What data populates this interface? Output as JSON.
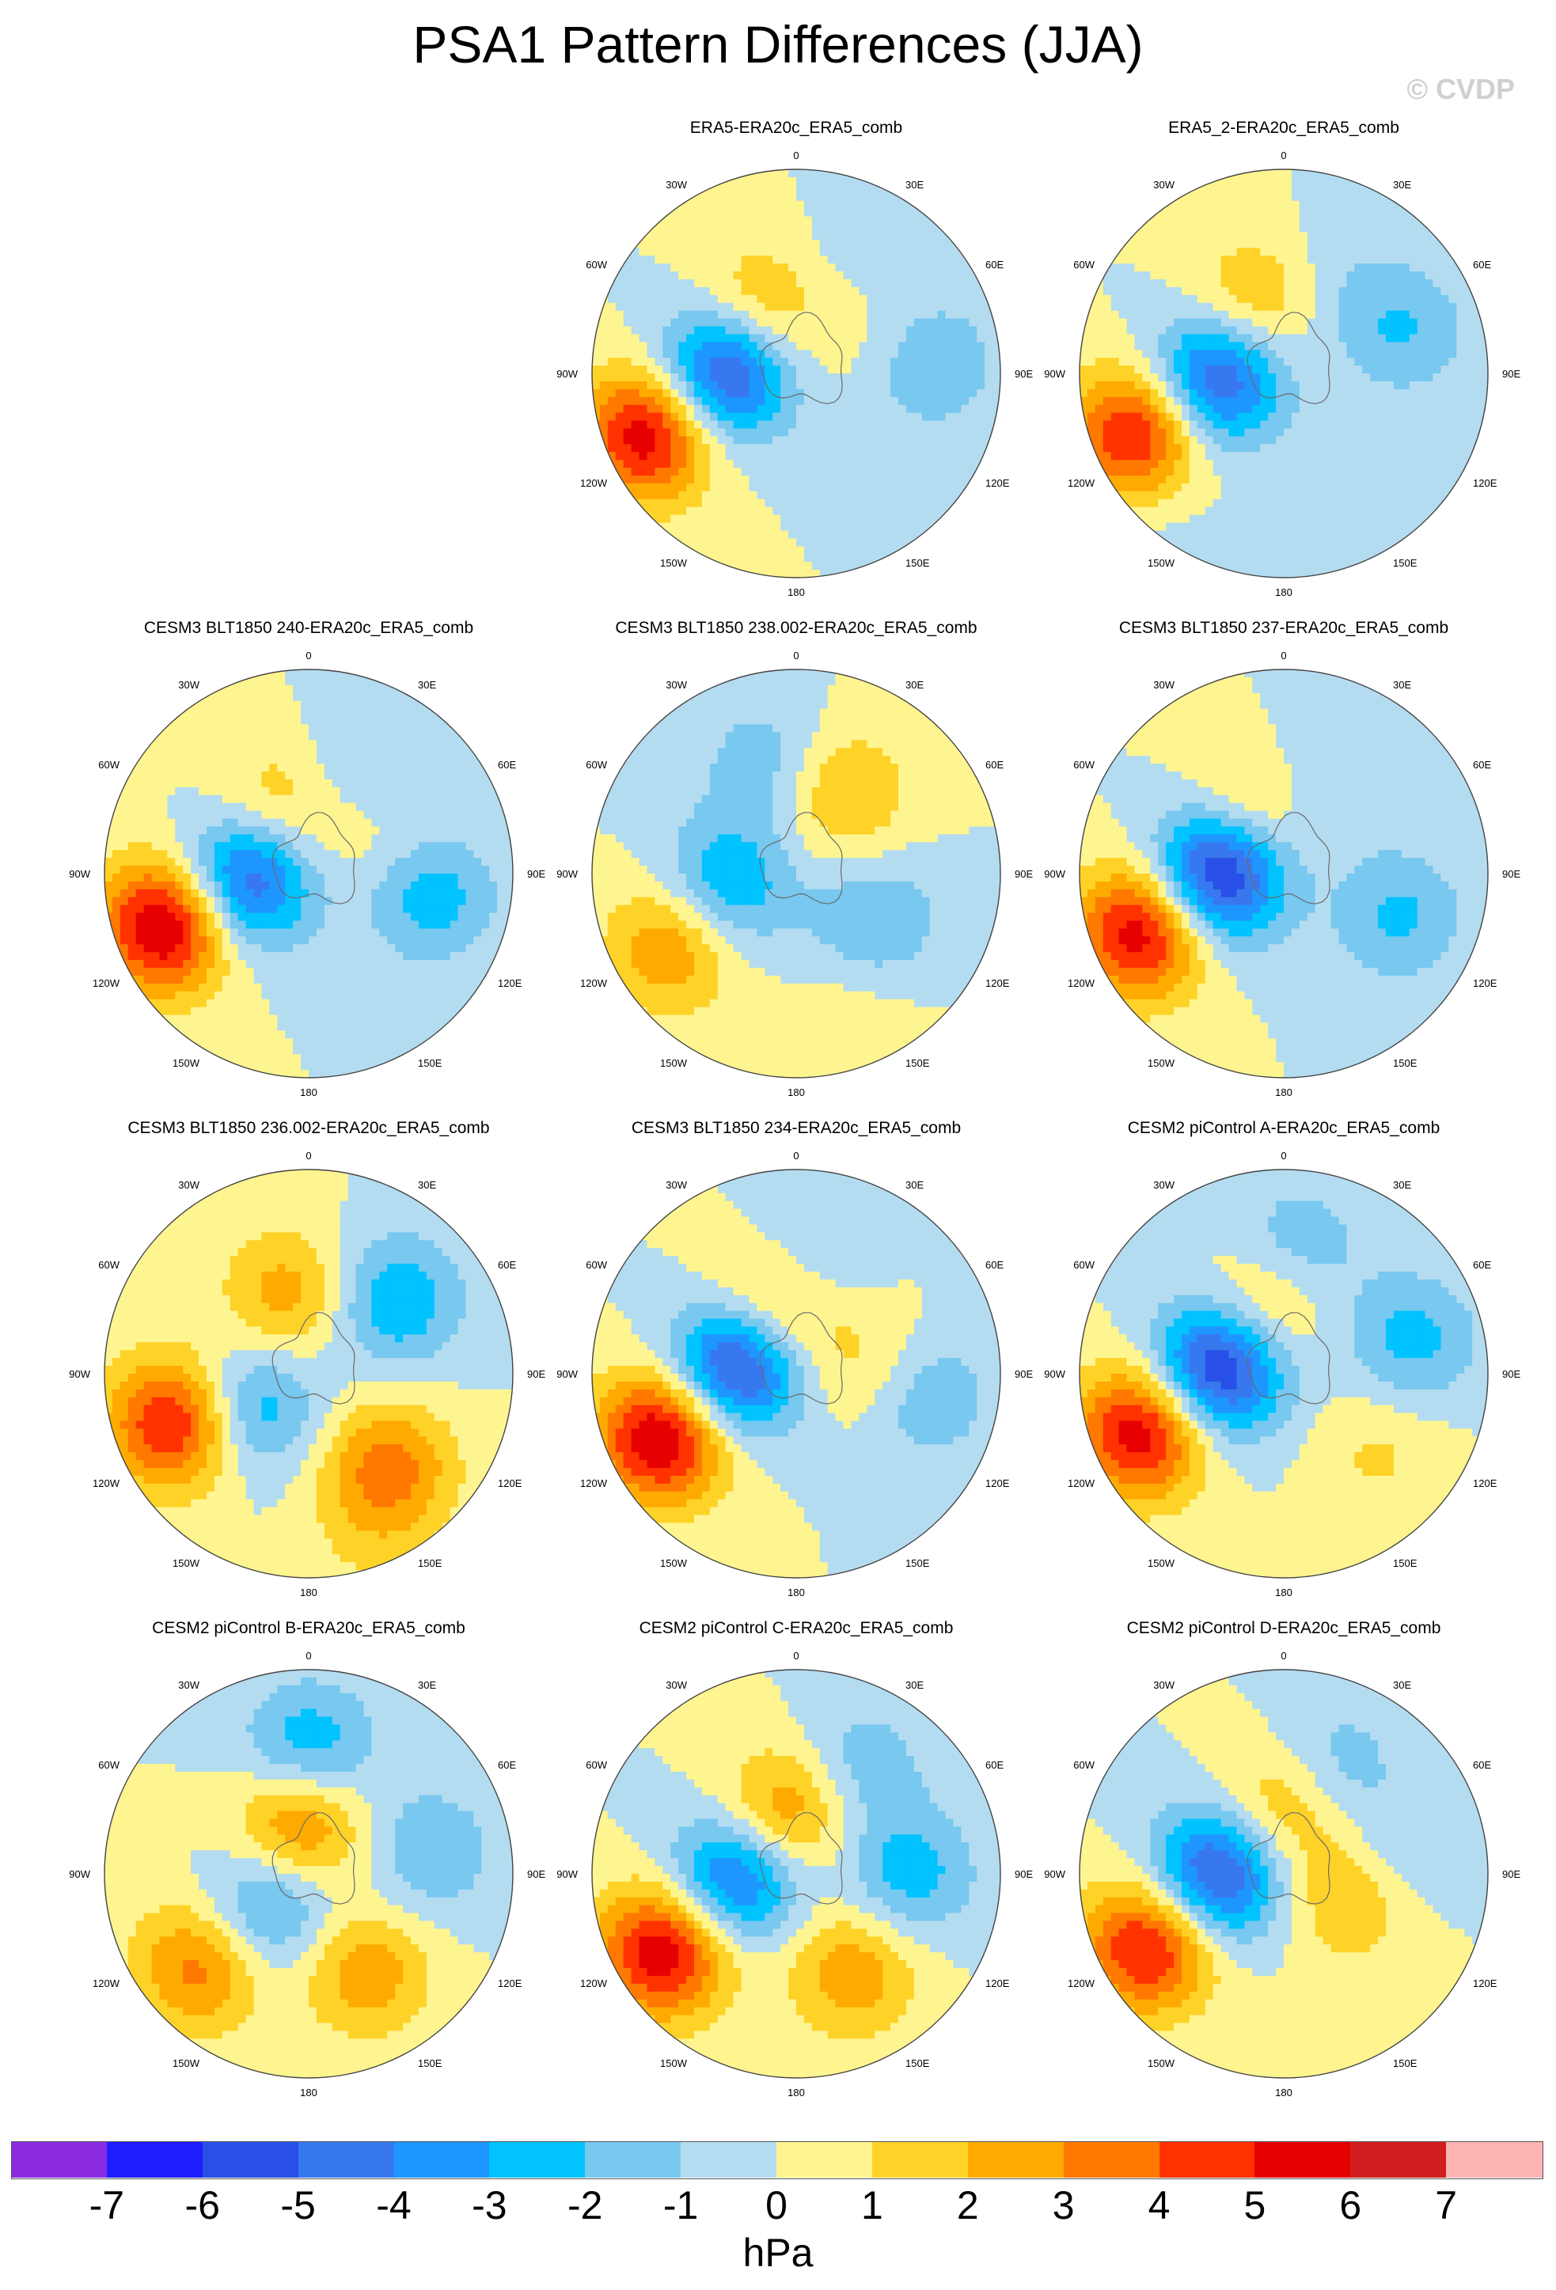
{
  "title": "PSA1 Pattern Differences (JJA)",
  "watermark": "© CVDP",
  "units": "hPa",
  "longitude_labels": [
    "0",
    "30E",
    "60E",
    "90E",
    "120E",
    "150E",
    "180",
    "150W",
    "120W",
    "90W",
    "60W",
    "30W"
  ],
  "colors": {
    "levels": [
      -7,
      -6,
      -5,
      -4,
      -3,
      -2,
      -1,
      0,
      1,
      2,
      3,
      4,
      5,
      6,
      7
    ],
    "bins": [
      "#8a2be2",
      "#1e1eff",
      "#2850e6",
      "#3878ee",
      "#1e96ff",
      "#00c3ff",
      "#78c8f0",
      "#b4dcf0",
      "#fff590",
      "#ffd228",
      "#ffaa00",
      "#ff7800",
      "#ff3200",
      "#e60000",
      "#d21e1e",
      "#ffb4b4"
    ]
  },
  "chart_data": [
    {
      "type": "contour_map",
      "title": "ERA5-ERA20c_ERA5_comb",
      "row": 0,
      "col": 1,
      "features": [
        {
          "lon": -112,
          "colat": 0.78,
          "amp": 6.0
        },
        {
          "lon": -90,
          "colat": 0.35,
          "amp": -6.0
        },
        {
          "lon": -25,
          "colat": 0.35,
          "amp": 2.8
        },
        {
          "lon": 20,
          "colat": 0.45,
          "amp": -1.0
        },
        {
          "lon": 85,
          "colat": 0.65,
          "amp": -2.2
        },
        {
          "lon": 60,
          "colat": 0.42,
          "amp": 1.0
        }
      ]
    },
    {
      "type": "contour_map",
      "title": "ERA5_2-ERA20c_ERA5_comb",
      "row": 0,
      "col": 2,
      "features": [
        {
          "lon": -112,
          "colat": 0.78,
          "amp": 5.5
        },
        {
          "lon": -95,
          "colat": 0.33,
          "amp": -5.5
        },
        {
          "lon": -20,
          "colat": 0.37,
          "amp": 2.5
        },
        {
          "lon": 70,
          "colat": 0.62,
          "amp": -2.0
        },
        {
          "lon": 25,
          "colat": 0.5,
          "amp": -0.9
        },
        {
          "lon": -140,
          "colat": 0.95,
          "amp": -0.6
        }
      ]
    },
    {
      "type": "contour_map",
      "title": "CESM3 BLT1850 240-ERA20c_ERA5_comb",
      "row": 1,
      "col": 0,
      "features": [
        {
          "lon": -110,
          "colat": 0.75,
          "amp": 6.5
        },
        {
          "lon": -95,
          "colat": 0.3,
          "amp": -5.5
        },
        {
          "lon": -25,
          "colat": 0.35,
          "amp": 2.2
        },
        {
          "lon": 30,
          "colat": 0.55,
          "amp": -1.6
        },
        {
          "lon": 100,
          "colat": 0.6,
          "amp": -2.7
        },
        {
          "lon": 60,
          "colat": 0.4,
          "amp": 1.2
        }
      ]
    },
    {
      "type": "contour_map",
      "title": "CESM3 BLT1850 238.002-ERA20c_ERA5_comb",
      "row": 1,
      "col": 1,
      "features": [
        {
          "lon": -120,
          "colat": 0.7,
          "amp": 3.2
        },
        {
          "lon": -100,
          "colat": 0.35,
          "amp": -3.2
        },
        {
          "lon": 30,
          "colat": 0.45,
          "amp": 2.4
        },
        {
          "lon": -15,
          "colat": 0.55,
          "amp": -1.8
        },
        {
          "lon": 120,
          "colat": 0.45,
          "amp": -2.0
        },
        {
          "lon": 160,
          "colat": 0.8,
          "amp": 0.8
        }
      ]
    },
    {
      "type": "contour_map",
      "title": "CESM3 BLT1850 237-ERA20c_ERA5_comb",
      "row": 1,
      "col": 2,
      "features": [
        {
          "lon": -112,
          "colat": 0.75,
          "amp": 6.0
        },
        {
          "lon": -90,
          "colat": 0.32,
          "amp": -7.0
        },
        {
          "lon": -25,
          "colat": 0.35,
          "amp": 2.5
        },
        {
          "lon": 20,
          "colat": 0.5,
          "amp": -1.4
        },
        {
          "lon": 110,
          "colat": 0.6,
          "amp": -2.2
        }
      ]
    },
    {
      "type": "contour_map",
      "title": "CESM3 BLT1850 236.002-ERA20c_ERA5_comb",
      "row": 2,
      "col": 0,
      "features": [
        {
          "lon": -110,
          "colat": 0.7,
          "amp": 5.5
        },
        {
          "lon": -120,
          "colat": 0.33,
          "amp": -3.2
        },
        {
          "lon": -15,
          "colat": 0.4,
          "amp": 2.6
        },
        {
          "lon": 50,
          "colat": 0.55,
          "amp": -3.0
        },
        {
          "lon": 140,
          "colat": 0.6,
          "amp": 3.5
        },
        {
          "lon": 160,
          "colat": 0.9,
          "amp": 0.8
        }
      ]
    },
    {
      "type": "contour_map",
      "title": "CESM3 BLT1850 234-ERA20c_ERA5_comb",
      "row": 2,
      "col": 1,
      "features": [
        {
          "lon": -115,
          "colat": 0.72,
          "amp": 6.5
        },
        {
          "lon": -85,
          "colat": 0.3,
          "amp": -6.5
        },
        {
          "lon": -20,
          "colat": 0.35,
          "amp": 2.8
        },
        {
          "lon": 10,
          "colat": 0.6,
          "amp": -1.5
        },
        {
          "lon": 100,
          "colat": 0.65,
          "amp": -2.0
        },
        {
          "lon": 80,
          "colat": 0.35,
          "amp": 1.5
        }
      ]
    },
    {
      "type": "contour_map",
      "title": "CESM2 piControl A-ERA20c_ERA5_comb",
      "row": 2,
      "col": 2,
      "features": [
        {
          "lon": -112,
          "colat": 0.75,
          "amp": 6.0
        },
        {
          "lon": -85,
          "colat": 0.32,
          "amp": -6.8
        },
        {
          "lon": -15,
          "colat": 0.35,
          "amp": 2.8
        },
        {
          "lon": 5,
          "colat": 0.6,
          "amp": -2.2
        },
        {
          "lon": 75,
          "colat": 0.65,
          "amp": -2.4
        },
        {
          "lon": 130,
          "colat": 0.6,
          "amp": 1.2
        }
      ]
    },
    {
      "type": "contour_map",
      "title": "CESM2 piControl B-ERA20c_ERA5_comb",
      "row": 3,
      "col": 0,
      "features": [
        {
          "lon": -130,
          "colat": 0.7,
          "amp": 3.5
        },
        {
          "lon": -130,
          "colat": 0.25,
          "amp": -3.2
        },
        {
          "lon": -10,
          "colat": 0.25,
          "amp": 4.0
        },
        {
          "lon": 0,
          "colat": 0.6,
          "amp": -3.2
        },
        {
          "lon": 80,
          "colat": 0.6,
          "amp": -2.0
        },
        {
          "lon": 150,
          "colat": 0.55,
          "amp": 2.8
        }
      ]
    },
    {
      "type": "contour_map",
      "title": "CESM2 piControl C-ERA20c_ERA5_comb",
      "row": 3,
      "col": 1,
      "features": [
        {
          "lon": -120,
          "colat": 0.75,
          "amp": 6.0
        },
        {
          "lon": -95,
          "colat": 0.3,
          "amp": -5.0
        },
        {
          "lon": -10,
          "colat": 0.3,
          "amp": 3.5
        },
        {
          "lon": 30,
          "colat": 0.6,
          "amp": -1.8
        },
        {
          "lon": 90,
          "colat": 0.55,
          "amp": -2.6
        },
        {
          "lon": 150,
          "colat": 0.55,
          "amp": 2.8
        }
      ]
    },
    {
      "type": "contour_map",
      "title": "CESM2 piControl D-ERA20c_ERA5_comb",
      "row": 3,
      "col": 2,
      "features": [
        {
          "lon": -118,
          "colat": 0.75,
          "amp": 5.5
        },
        {
          "lon": -90,
          "colat": 0.32,
          "amp": -6.0
        },
        {
          "lon": -5,
          "colat": 0.3,
          "amp": 2.6
        },
        {
          "lon": 25,
          "colat": 0.6,
          "amp": -1.6
        },
        {
          "lon": 80,
          "colat": 0.55,
          "amp": -1.2
        },
        {
          "lon": 110,
          "colat": 0.35,
          "amp": 2.2
        }
      ]
    }
  ]
}
